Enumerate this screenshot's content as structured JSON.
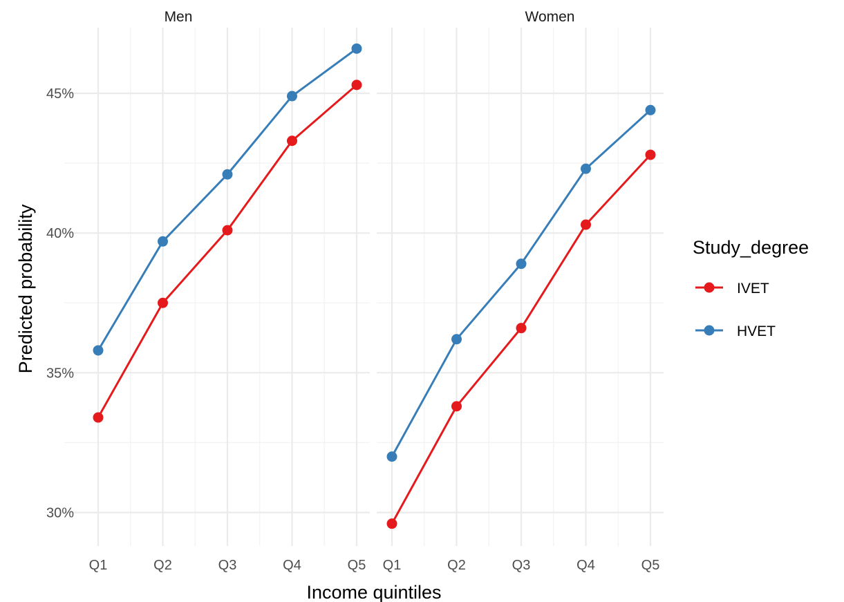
{
  "chart_data": {
    "type": "line",
    "facet_by": [
      "Men",
      "Women"
    ],
    "categories": [
      "Q1",
      "Q2",
      "Q3",
      "Q4",
      "Q5"
    ],
    "xlabel": "Income quintiles",
    "ylabel": "Predicted probability",
    "ylim": [
      0.288,
      0.4735
    ],
    "yticks": [
      0.3,
      0.35,
      0.4,
      0.45
    ],
    "ytick_labels": [
      "30%",
      "35%",
      "40%",
      "45%"
    ],
    "grid": true,
    "legend": {
      "title": "Study_degree",
      "position": "right",
      "entries": [
        {
          "label": "IVET",
          "color": "#e41a1c"
        },
        {
          "label": "HVET",
          "color": "#377eb8"
        }
      ]
    },
    "panels": [
      {
        "label": "Men",
        "series": [
          {
            "name": "IVET",
            "color": "#e41a1c",
            "values": [
              0.334,
              0.375,
              0.401,
              0.433,
              0.453
            ]
          },
          {
            "name": "HVET",
            "color": "#377eb8",
            "values": [
              0.358,
              0.397,
              0.421,
              0.449,
              0.466
            ]
          }
        ]
      },
      {
        "label": "Women",
        "series": [
          {
            "name": "IVET",
            "color": "#e41a1c",
            "values": [
              0.296,
              0.338,
              0.366,
              0.403,
              0.428
            ]
          },
          {
            "name": "HVET",
            "color": "#377eb8",
            "values": [
              0.32,
              0.362,
              0.389,
              0.423,
              0.444
            ]
          }
        ]
      }
    ]
  }
}
